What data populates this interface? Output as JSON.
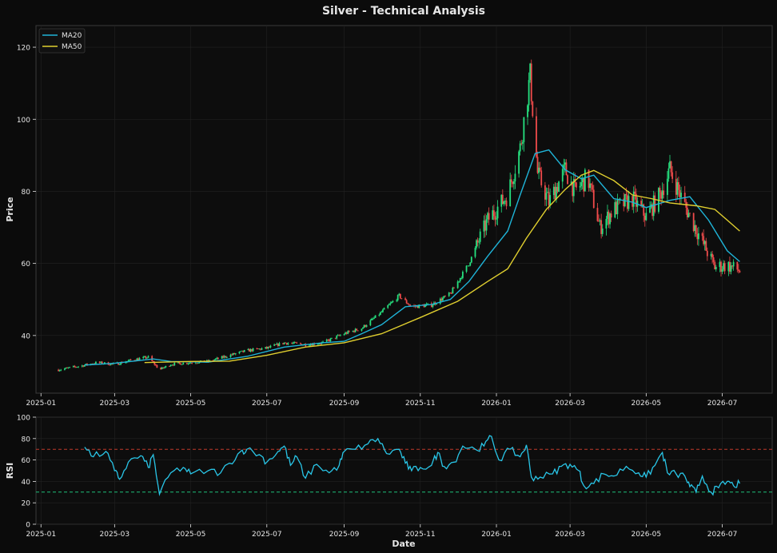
{
  "figure": {
    "title": "Silver - Technical Analysis",
    "colors": {
      "background": "#0b0b0b",
      "panel": "#0d0d0d",
      "grid": "#222222",
      "axis": "#3a3a3a",
      "text": "#e6e6e6",
      "up_candle": "#26e07f",
      "down_candle": "#ef4b4b",
      "ma20": "#1fb4d8",
      "ma50": "#e0cf2f",
      "rsi": "#29c6e8",
      "overbought_line": "#c0392b",
      "oversold_line": "#1fbf7a"
    }
  },
  "chart_data": [
    {
      "type": "candlestick",
      "title": "Silver - Technical Analysis",
      "xlabel": "",
      "ylabel": "Price",
      "x_range": [
        "2024-12-28",
        "2026-08-10"
      ],
      "ylim": [
        24,
        126
      ],
      "yticks": [
        40,
        60,
        80,
        100,
        120
      ],
      "xticks": [
        "2025-01",
        "2025-03",
        "2025-05",
        "2025-07",
        "2025-09",
        "2025-11",
        "2026-01",
        "2026-03",
        "2026-05",
        "2026-07"
      ],
      "grid": true,
      "legend": {
        "position": "top-left",
        "entries": [
          "MA20",
          "MA50"
        ]
      },
      "price_path": [
        [
          "2025-01-15",
          30.5
        ],
        [
          "2025-02-01",
          31.5
        ],
        [
          "2025-02-15",
          32.5
        ],
        [
          "2025-03-01",
          32.0
        ],
        [
          "2025-03-15",
          33.2
        ],
        [
          "2025-03-28",
          34.0
        ],
        [
          "2025-04-06",
          30.5
        ],
        [
          "2025-04-15",
          32.0
        ],
        [
          "2025-05-01",
          32.5
        ],
        [
          "2025-05-15",
          32.8
        ],
        [
          "2025-06-01",
          34.5
        ],
        [
          "2025-06-15",
          35.8
        ],
        [
          "2025-07-01",
          36.5
        ],
        [
          "2025-07-15",
          38.0
        ],
        [
          "2025-08-01",
          37.5
        ],
        [
          "2025-08-15",
          38.0
        ],
        [
          "2025-09-01",
          40.5
        ],
        [
          "2025-09-15",
          42.0
        ],
        [
          "2025-10-01",
          46.5
        ],
        [
          "2025-10-15",
          51.0
        ],
        [
          "2025-10-25",
          48.0
        ],
        [
          "2025-11-10",
          48.5
        ],
        [
          "2025-11-25",
          51.5
        ],
        [
          "2025-12-10",
          60.0
        ],
        [
          "2025-12-25",
          72.0
        ],
        [
          "2026-01-10",
          79.0
        ],
        [
          "2026-01-20",
          92.0
        ],
        [
          "2026-01-28",
          112.0
        ],
        [
          "2026-02-03",
          85.0
        ],
        [
          "2026-02-12",
          77.0
        ],
        [
          "2026-02-25",
          86.0
        ],
        [
          "2026-03-05",
          80.0
        ],
        [
          "2026-03-15",
          84.0
        ],
        [
          "2026-03-25",
          70.0
        ],
        [
          "2026-04-05",
          75.0
        ],
        [
          "2026-04-20",
          78.0
        ],
        [
          "2026-05-01",
          73.0
        ],
        [
          "2026-05-12",
          79.0
        ],
        [
          "2026-05-20",
          86.0
        ],
        [
          "2026-06-01",
          76.0
        ],
        [
          "2026-06-15",
          66.0
        ],
        [
          "2026-06-25",
          59.0
        ],
        [
          "2026-07-05",
          59.5
        ],
        [
          "2026-07-15",
          58.0
        ]
      ],
      "series": [
        {
          "name": "MA20",
          "points": [
            [
              "2025-02-05",
              31.8
            ],
            [
              "2025-03-01",
              32.3
            ],
            [
              "2025-04-01",
              33.5
            ],
            [
              "2025-04-15",
              32.8
            ],
            [
              "2025-05-15",
              32.6
            ],
            [
              "2025-06-15",
              34.2
            ],
            [
              "2025-07-15",
              36.8
            ],
            [
              "2025-08-15",
              38.0
            ],
            [
              "2025-09-01",
              38.4
            ],
            [
              "2025-09-15",
              40.5
            ],
            [
              "2025-10-01",
              43.0
            ],
            [
              "2025-10-20",
              48.0
            ],
            [
              "2025-11-10",
              48.6
            ],
            [
              "2025-11-25",
              50.0
            ],
            [
              "2025-12-10",
              55.0
            ],
            [
              "2025-12-25",
              62.0
            ],
            [
              "2026-01-10",
              69.0
            ],
            [
              "2026-01-20",
              79.0
            ],
            [
              "2026-02-01",
              90.5
            ],
            [
              "2026-02-12",
              91.5
            ],
            [
              "2026-02-25",
              86.0
            ],
            [
              "2026-03-10",
              83.5
            ],
            [
              "2026-03-20",
              84.5
            ],
            [
              "2026-04-05",
              78.0
            ],
            [
              "2026-04-20",
              77.0
            ],
            [
              "2026-05-01",
              75.5
            ],
            [
              "2026-05-20",
              77.5
            ],
            [
              "2026-06-05",
              78.5
            ],
            [
              "2026-06-20",
              72.0
            ],
            [
              "2026-07-05",
              63.5
            ],
            [
              "2026-07-15",
              60.5
            ]
          ]
        },
        {
          "name": "MA50",
          "points": [
            [
              "2025-03-25",
              32.5
            ],
            [
              "2025-05-01",
              32.8
            ],
            [
              "2025-06-01",
              32.9
            ],
            [
              "2025-07-01",
              34.5
            ],
            [
              "2025-08-01",
              36.8
            ],
            [
              "2025-09-01",
              38.0
            ],
            [
              "2025-10-01",
              40.5
            ],
            [
              "2025-11-01",
              45.0
            ],
            [
              "2025-12-01",
              49.5
            ],
            [
              "2025-12-25",
              55.0
            ],
            [
              "2026-01-10",
              58.5
            ],
            [
              "2026-01-25",
              67.0
            ],
            [
              "2026-02-10",
              75.0
            ],
            [
              "2026-02-25",
              80.5
            ],
            [
              "2026-03-10",
              84.5
            ],
            [
              "2026-03-20",
              85.8
            ],
            [
              "2026-04-05",
              83.0
            ],
            [
              "2026-04-20",
              79.0
            ],
            [
              "2026-05-05",
              78.0
            ],
            [
              "2026-05-20",
              76.8
            ],
            [
              "2026-06-10",
              76.0
            ],
            [
              "2026-06-25",
              75.0
            ],
            [
              "2026-07-05",
              72.0
            ],
            [
              "2026-07-15",
              69.0
            ]
          ]
        }
      ]
    },
    {
      "type": "line",
      "title": "",
      "xlabel": "Date",
      "ylabel": "RSI",
      "ylim": [
        0,
        100
      ],
      "yticks": [
        0,
        20,
        40,
        60,
        80,
        100
      ],
      "reference_lines": [
        70,
        30
      ],
      "grid": true,
      "series": [
        {
          "name": "RSI",
          "points": [
            [
              "2025-02-05",
              72
            ],
            [
              "2025-02-12",
              63
            ],
            [
              "2025-02-22",
              68
            ],
            [
              "2025-03-01",
              50
            ],
            [
              "2025-03-05",
              42
            ],
            [
              "2025-03-12",
              58
            ],
            [
              "2025-03-22",
              64
            ],
            [
              "2025-03-28",
              53
            ],
            [
              "2025-04-01",
              65
            ],
            [
              "2025-04-06",
              28
            ],
            [
              "2025-04-15",
              48
            ],
            [
              "2025-04-25",
              53
            ],
            [
              "2025-05-01",
              47
            ],
            [
              "2025-05-15",
              50
            ],
            [
              "2025-05-25",
              48
            ],
            [
              "2025-06-01",
              57
            ],
            [
              "2025-06-10",
              68
            ],
            [
              "2025-06-15",
              70
            ],
            [
              "2025-06-25",
              65
            ],
            [
              "2025-07-01",
              58
            ],
            [
              "2025-07-10",
              68
            ],
            [
              "2025-07-15",
              73
            ],
            [
              "2025-07-20",
              55
            ],
            [
              "2025-07-25",
              63
            ],
            [
              "2025-08-01",
              43
            ],
            [
              "2025-08-10",
              56
            ],
            [
              "2025-08-20",
              48
            ],
            [
              "2025-08-28",
              55
            ],
            [
              "2025-09-01",
              68
            ],
            [
              "2025-09-10",
              70
            ],
            [
              "2025-09-20",
              75
            ],
            [
              "2025-09-28",
              80
            ],
            [
              "2025-10-05",
              66
            ],
            [
              "2025-10-15",
              70
            ],
            [
              "2025-10-20",
              57
            ],
            [
              "2025-10-25",
              50
            ],
            [
              "2025-11-01",
              53
            ],
            [
              "2025-11-10",
              55
            ],
            [
              "2025-11-15",
              67
            ],
            [
              "2025-11-20",
              54
            ],
            [
              "2025-11-28",
              58
            ],
            [
              "2025-12-05",
              73
            ],
            [
              "2025-12-15",
              70
            ],
            [
              "2025-12-22",
              73
            ],
            [
              "2025-12-28",
              82
            ],
            [
              "2026-01-03",
              60
            ],
            [
              "2026-01-12",
              70
            ],
            [
              "2026-01-20",
              63
            ],
            [
              "2026-01-25",
              74
            ],
            [
              "2026-01-29",
              44
            ],
            [
              "2026-02-05",
              44
            ],
            [
              "2026-02-15",
              47
            ],
            [
              "2026-02-22",
              54
            ],
            [
              "2026-03-01",
              56
            ],
            [
              "2026-03-08",
              50
            ],
            [
              "2026-03-12",
              36
            ],
            [
              "2026-03-20",
              38
            ],
            [
              "2026-03-28",
              47
            ],
            [
              "2026-04-05",
              45
            ],
            [
              "2026-04-15",
              54
            ],
            [
              "2026-04-25",
              48
            ],
            [
              "2026-05-01",
              44
            ],
            [
              "2026-05-08",
              55
            ],
            [
              "2026-05-14",
              67
            ],
            [
              "2026-05-18",
              48
            ],
            [
              "2026-05-25",
              47
            ],
            [
              "2026-06-01",
              45
            ],
            [
              "2026-06-05",
              35
            ],
            [
              "2026-06-10",
              30
            ],
            [
              "2026-06-15",
              45
            ],
            [
              "2026-06-22",
              30
            ],
            [
              "2026-06-28",
              34
            ],
            [
              "2026-07-05",
              40
            ],
            [
              "2026-07-10",
              36
            ],
            [
              "2026-07-15",
              38
            ]
          ]
        }
      ]
    }
  ]
}
